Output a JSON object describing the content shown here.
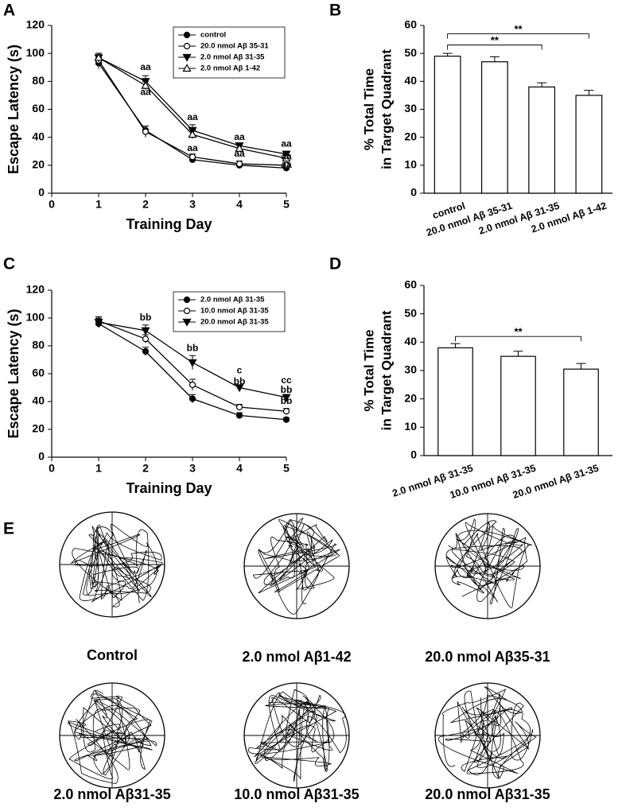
{
  "chart_data": [
    {
      "type": "line",
      "panel": "A",
      "xlabel": "Training Day",
      "ylabel": "Escape Latency (s)",
      "x": [
        1,
        2,
        3,
        4,
        5
      ],
      "xlim": [
        0,
        5
      ],
      "xticks": [
        0,
        1,
        2,
        3,
        4,
        5
      ],
      "ylim": [
        0,
        120
      ],
      "yticks": [
        0,
        20,
        40,
        60,
        80,
        100,
        120
      ],
      "legend": "upper right",
      "series": [
        {
          "name": "control",
          "color": "#000000",
          "marker": "circle",
          "filled": true,
          "values": [
            93,
            45,
            24,
            20,
            18
          ],
          "errors": [
            4,
            3,
            2,
            1.5,
            1.5
          ]
        },
        {
          "name": "20.0 nmol Aβ 35-31",
          "color": "#000000",
          "marker": "circle",
          "filled": false,
          "values": [
            95,
            44,
            26,
            21,
            20
          ],
          "errors": [
            4,
            4,
            2,
            2,
            2
          ]
        },
        {
          "name": "2.0 nmol Aβ 31-35",
          "color": "#000000",
          "marker": "triangle-down",
          "filled": true,
          "values": [
            97,
            80,
            45,
            34,
            28
          ],
          "errors": [
            3,
            4,
            4,
            2,
            2
          ]
        },
        {
          "name": "2.0 nmol Aβ 1-42",
          "color": "#000000",
          "marker": "triangle-up",
          "filled": false,
          "values": [
            97,
            77,
            42,
            32,
            25
          ],
          "errors": [
            3,
            3,
            3,
            2,
            2
          ]
        }
      ],
      "annotations": [
        {
          "text": "aa",
          "x": 2,
          "y": 90
        },
        {
          "text": "aa",
          "x": 2,
          "y": 72
        },
        {
          "text": "aa",
          "x": 3,
          "y": 54
        },
        {
          "text": "aa",
          "x": 3,
          "y": 32
        },
        {
          "text": "aa",
          "x": 4,
          "y": 40
        },
        {
          "text": "aa",
          "x": 4,
          "y": 28
        },
        {
          "text": "aa",
          "x": 5,
          "y": 35
        },
        {
          "text": "aa",
          "x": 5,
          "y": 26
        },
        {
          "text": "aa",
          "x": 5,
          "y": 20
        }
      ]
    },
    {
      "type": "bar",
      "panel": "B",
      "ylabel": [
        "% Total Time",
        "in Target Quadrant"
      ],
      "categories": [
        "control",
        "20.0 nmol Aβ  35-31",
        "2.0 nmol Aβ  31-35",
        "2.0 nmol Aβ  1-42"
      ],
      "values": [
        49,
        47,
        38,
        35
      ],
      "errors": [
        1,
        1.8,
        1.5,
        1.8
      ],
      "color": "#ffffff",
      "ylim": [
        0,
        60
      ],
      "yticks": [
        0,
        10,
        20,
        30,
        40,
        50,
        60
      ],
      "brackets": [
        {
          "from": 0,
          "to": 2,
          "y": 53,
          "label": "**"
        },
        {
          "from": 0,
          "to": 3,
          "y": 57,
          "label": "**"
        }
      ]
    },
    {
      "type": "line",
      "panel": "C",
      "xlabel": "Training Day",
      "ylabel": "Escape Latency (s)",
      "x": [
        1,
        2,
        3,
        4,
        5
      ],
      "xlim": [
        0,
        5
      ],
      "xticks": [
        0,
        1,
        2,
        3,
        4,
        5
      ],
      "ylim": [
        0,
        120
      ],
      "yticks": [
        0,
        20,
        40,
        60,
        80,
        100,
        120
      ],
      "legend": "upper right",
      "series": [
        {
          "name": "2.0 nmol Aβ 31-35",
          "color": "#000000",
          "marker": "circle",
          "filled": true,
          "values": [
            96,
            76,
            42,
            30,
            27
          ],
          "errors": [
            3,
            3,
            3,
            2,
            1.5
          ]
        },
        {
          "name": "10.0 nmol Aβ 31-35",
          "color": "#000000",
          "marker": "circle",
          "filled": false,
          "values": [
            98,
            85,
            52,
            36,
            33
          ],
          "errors": [
            3,
            3,
            4,
            2,
            2
          ]
        },
        {
          "name": "20.0 nmol Aβ 31-35",
          "color": "#000000",
          "marker": "triangle-down",
          "filled": true,
          "values": [
            97,
            91,
            68,
            50,
            43
          ],
          "errors": [
            3,
            4,
            5,
            2,
            2
          ]
        }
      ],
      "annotations": [
        {
          "text": "bb",
          "x": 2,
          "y": 100
        },
        {
          "text": "bb",
          "x": 3,
          "y": 78
        },
        {
          "text": "c",
          "x": 4,
          "y": 62
        },
        {
          "text": "bb",
          "x": 4,
          "y": 54
        },
        {
          "text": "cc",
          "x": 5,
          "y": 55
        },
        {
          "text": "bb",
          "x": 5,
          "y": 48
        },
        {
          "text": "bb",
          "x": 5,
          "y": 40
        }
      ]
    },
    {
      "type": "bar",
      "panel": "D",
      "ylabel": [
        "% Total Time",
        "in Target Quadrant"
      ],
      "categories": [
        "2.0 nmol Aβ  31-35",
        "10.0 nmol Aβ  31-35",
        "20.0 nmol Aβ  31-35"
      ],
      "values": [
        38,
        35,
        30.5
      ],
      "errors": [
        1.5,
        1.8,
        2
      ],
      "color": "#ffffff",
      "ylim": [
        0,
        60
      ],
      "yticks": [
        0,
        10,
        20,
        30,
        40,
        50,
        60
      ],
      "brackets": [
        {
          "from": 0,
          "to": 2,
          "y": 42,
          "label": "**"
        }
      ]
    }
  ],
  "panel_e": {
    "panel": "E",
    "labels": [
      "Control",
      "2.0 nmol Aβ1-42",
      "20.0 nmol Aβ35-31",
      "2.0 nmol Aβ31-35",
      "10.0 nmol Aβ31-35",
      "20.0 nmol Aβ31-35"
    ]
  }
}
